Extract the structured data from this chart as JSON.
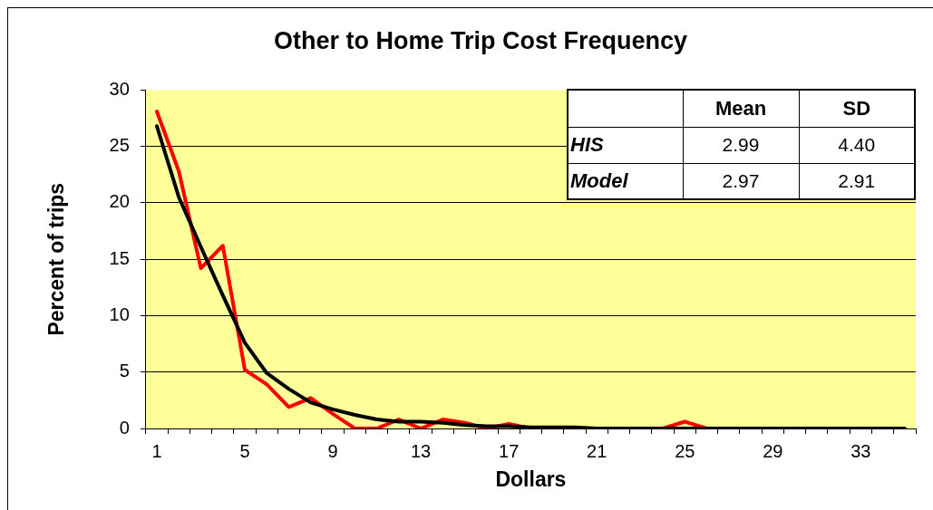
{
  "chart_data": [
    {
      "type": "line",
      "title": "Other to Home Trip Cost Frequency",
      "xlabel": "Dollars",
      "ylabel": "Percent of trips",
      "categories": [
        "1",
        null,
        null,
        null,
        "5",
        null,
        null,
        null,
        "9",
        null,
        null,
        null,
        "13",
        null,
        null,
        null,
        "17",
        null,
        null,
        null,
        "21",
        null,
        null,
        null,
        "25",
        null,
        null,
        null,
        "29",
        null,
        null,
        null,
        "33",
        null,
        null
      ],
      "series": [
        {
          "color": "#ff0000",
          "values": [
            28.1,
            22.8,
            14.2,
            16.2,
            5.2,
            3.9,
            1.9,
            2.7,
            1.3,
            0,
            0,
            0.8,
            0,
            0.8,
            0.5,
            0,
            0.4,
            0,
            0,
            0,
            0,
            0,
            0,
            0,
            0.6,
            0,
            0,
            null,
            null,
            null,
            null,
            null,
            null,
            null,
            null
          ]
        },
        {
          "color": "#000000",
          "values": [
            26.8,
            20.5,
            16.1,
            11.8,
            7.6,
            4.9,
            3.5,
            2.3,
            1.7,
            1.2,
            0.8,
            0.6,
            0.6,
            0.5,
            0.3,
            0.2,
            0.2,
            0.1,
            0.1,
            0.1,
            0,
            0,
            0,
            0,
            0,
            0,
            0,
            0,
            0,
            0,
            0,
            0,
            0,
            0,
            0
          ]
        }
      ],
      "ylim": [
        0,
        30
      ],
      "yticks": [
        0,
        5,
        10,
        15,
        20,
        25,
        30
      ],
      "grid": "y",
      "marker": "none",
      "line_style": "solid",
      "legend": false
    },
    {
      "type": "other",
      "categories": [
        "Mean",
        "SD"
      ],
      "y_categories": [
        "HIS",
        "Model"
      ],
      "cell_labels": [
        [
          "2.99",
          "4.40"
        ],
        [
          "2.97",
          "2.91"
        ]
      ]
    }
  ]
}
